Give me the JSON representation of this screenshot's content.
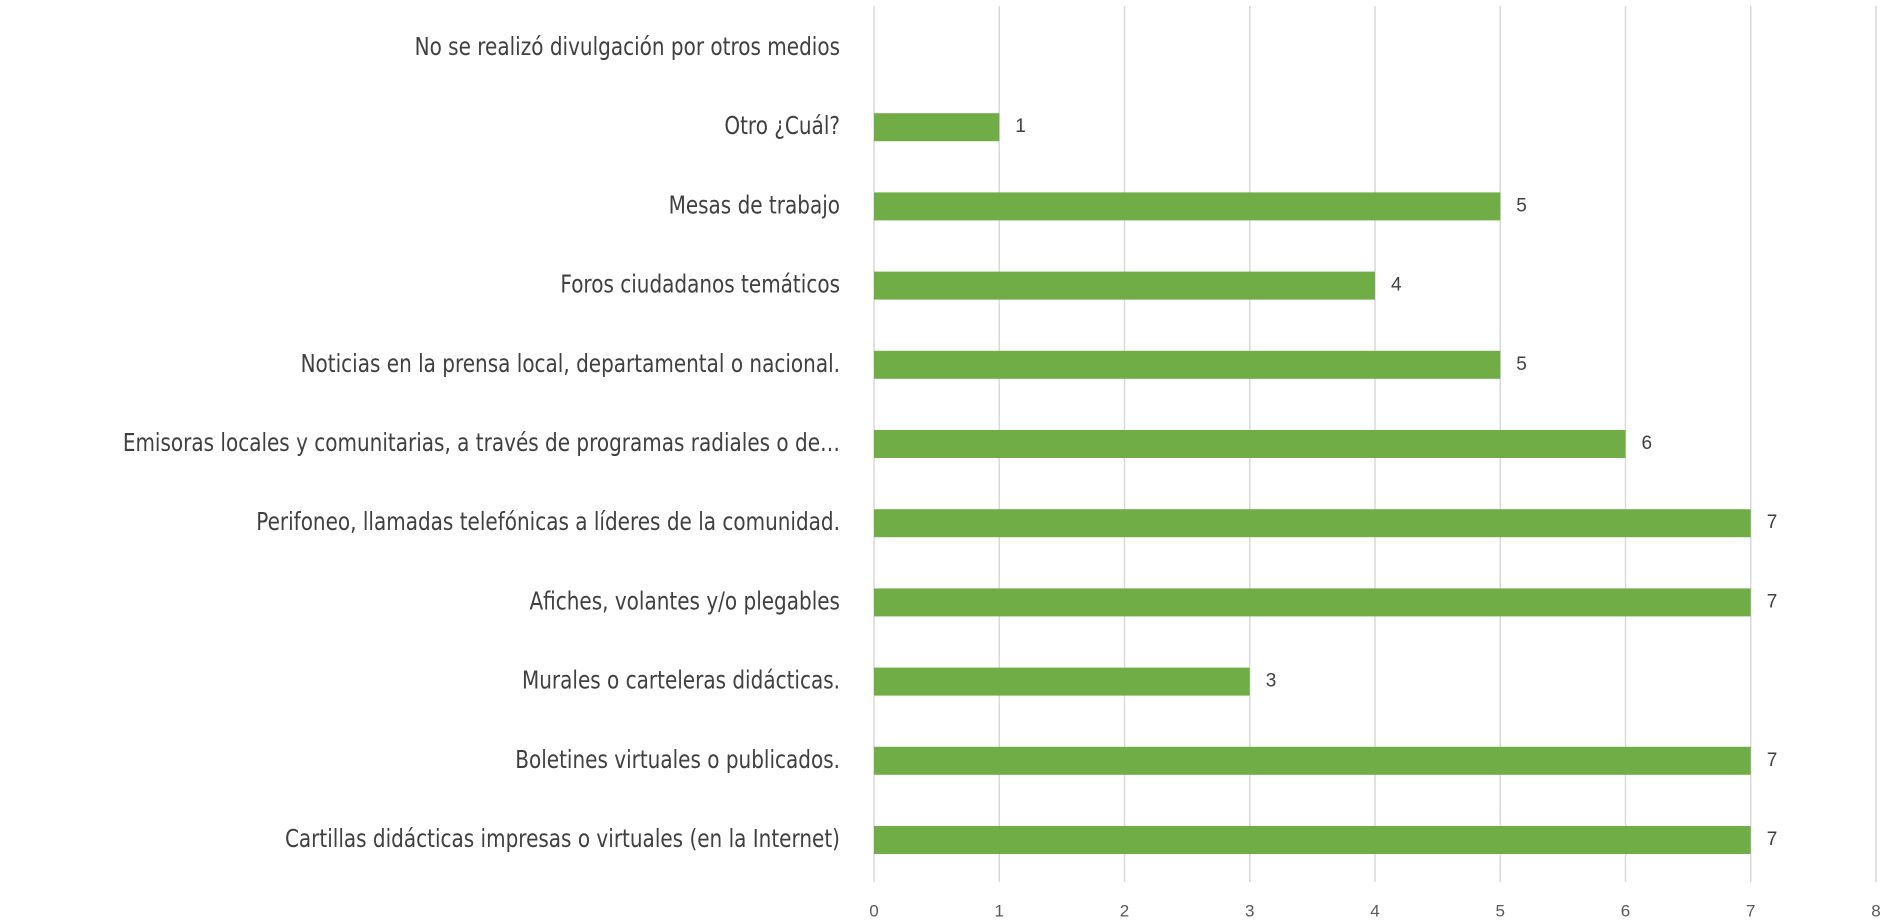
{
  "chart_data": {
    "type": "barh",
    "categories": [
      "No se realizó divulgación por otros medios",
      "Otro ¿Cuál?",
      "Mesas de trabajo",
      "Foros ciudadanos temáticos",
      "Noticias en la prensa local, departamental o nacional.",
      "Emisoras locales y comunitarias, a través de programas radiales o de…",
      "Perifoneo, llamadas telefónicas a líderes de la comunidad.",
      "Afiches, volantes y/o plegables",
      "Murales o carteleras didácticas.",
      "Boletines virtuales o publicados.",
      "Cartillas didácticas impresas o virtuales (en la Internet)"
    ],
    "values": [
      null,
      1,
      5,
      4,
      5,
      6,
      7,
      7,
      3,
      7,
      7
    ],
    "color": "#70ad47",
    "xlim": [
      0,
      8
    ],
    "xticks": [
      0,
      1,
      2,
      3,
      4,
      5,
      6,
      7,
      8
    ],
    "grid": true
  }
}
